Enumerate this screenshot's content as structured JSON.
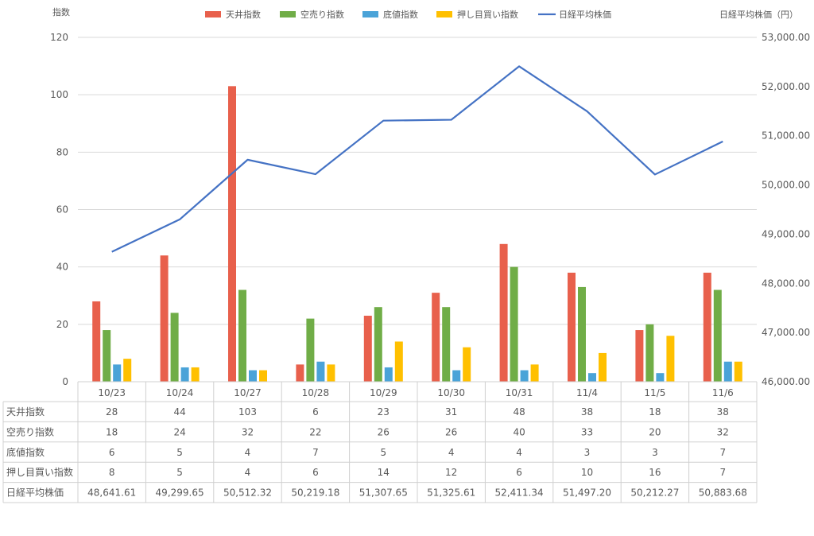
{
  "chart_data": {
    "type": "bar",
    "categories": [
      "10/23",
      "10/24",
      "10/27",
      "10/28",
      "10/29",
      "10/30",
      "10/31",
      "11/4",
      "11/5",
      "11/6"
    ],
    "left_axis": {
      "title": "指数",
      "min": 0,
      "max": 120,
      "step": 20,
      "ticks": [
        "0",
        "20",
        "40",
        "60",
        "80",
        "100",
        "120"
      ]
    },
    "right_axis": {
      "title": "日経平均株価（円）",
      "min": 46000,
      "max": 53000,
      "step": 1000,
      "ticks": [
        "46,000.00",
        "47,000.00",
        "48,000.00",
        "49,000.00",
        "50,000.00",
        "51,000.00",
        "52,000.00",
        "53,000.00"
      ]
    },
    "grid": true,
    "legend_position": "top",
    "series": [
      {
        "name": "天井指数",
        "type": "bar",
        "axis": "left",
        "color": "#e8604c",
        "values": [
          28,
          44,
          103,
          6,
          23,
          31,
          48,
          38,
          18,
          38
        ],
        "labels": [
          "28",
          "44",
          "103",
          "6",
          "23",
          "31",
          "48",
          "38",
          "18",
          "38"
        ]
      },
      {
        "name": "空売り指数",
        "type": "bar",
        "axis": "left",
        "color": "#70ad47",
        "values": [
          18,
          24,
          32,
          22,
          26,
          26,
          40,
          33,
          20,
          32
        ],
        "labels": [
          "18",
          "24",
          "32",
          "22",
          "26",
          "26",
          "40",
          "33",
          "20",
          "32"
        ]
      },
      {
        "name": "底値指数",
        "type": "bar",
        "axis": "left",
        "color": "#4aa3d8",
        "values": [
          6,
          5,
          4,
          7,
          5,
          4,
          4,
          3,
          3,
          7
        ],
        "labels": [
          "6",
          "5",
          "4",
          "7",
          "5",
          "4",
          "4",
          "3",
          "3",
          "7"
        ]
      },
      {
        "name": "押し目買い指数",
        "type": "bar",
        "axis": "left",
        "color": "#ffc000",
        "values": [
          8,
          5,
          4,
          6,
          14,
          12,
          6,
          10,
          16,
          7
        ],
        "labels": [
          "8",
          "5",
          "4",
          "6",
          "14",
          "12",
          "6",
          "10",
          "16",
          "7"
        ]
      },
      {
        "name": "日経平均株価",
        "type": "line",
        "axis": "right",
        "color": "#4472c4",
        "values": [
          48641.61,
          49299.65,
          50512.32,
          50219.18,
          51307.65,
          51325.61,
          52411.34,
          51497.2,
          50212.27,
          50883.68
        ],
        "labels": [
          "48,641.61",
          "49,299.65",
          "50,512.32",
          "50,219.18",
          "51,307.65",
          "51,325.61",
          "52,411.34",
          "51,497.20",
          "50,212.27",
          "50,883.68"
        ]
      }
    ]
  }
}
